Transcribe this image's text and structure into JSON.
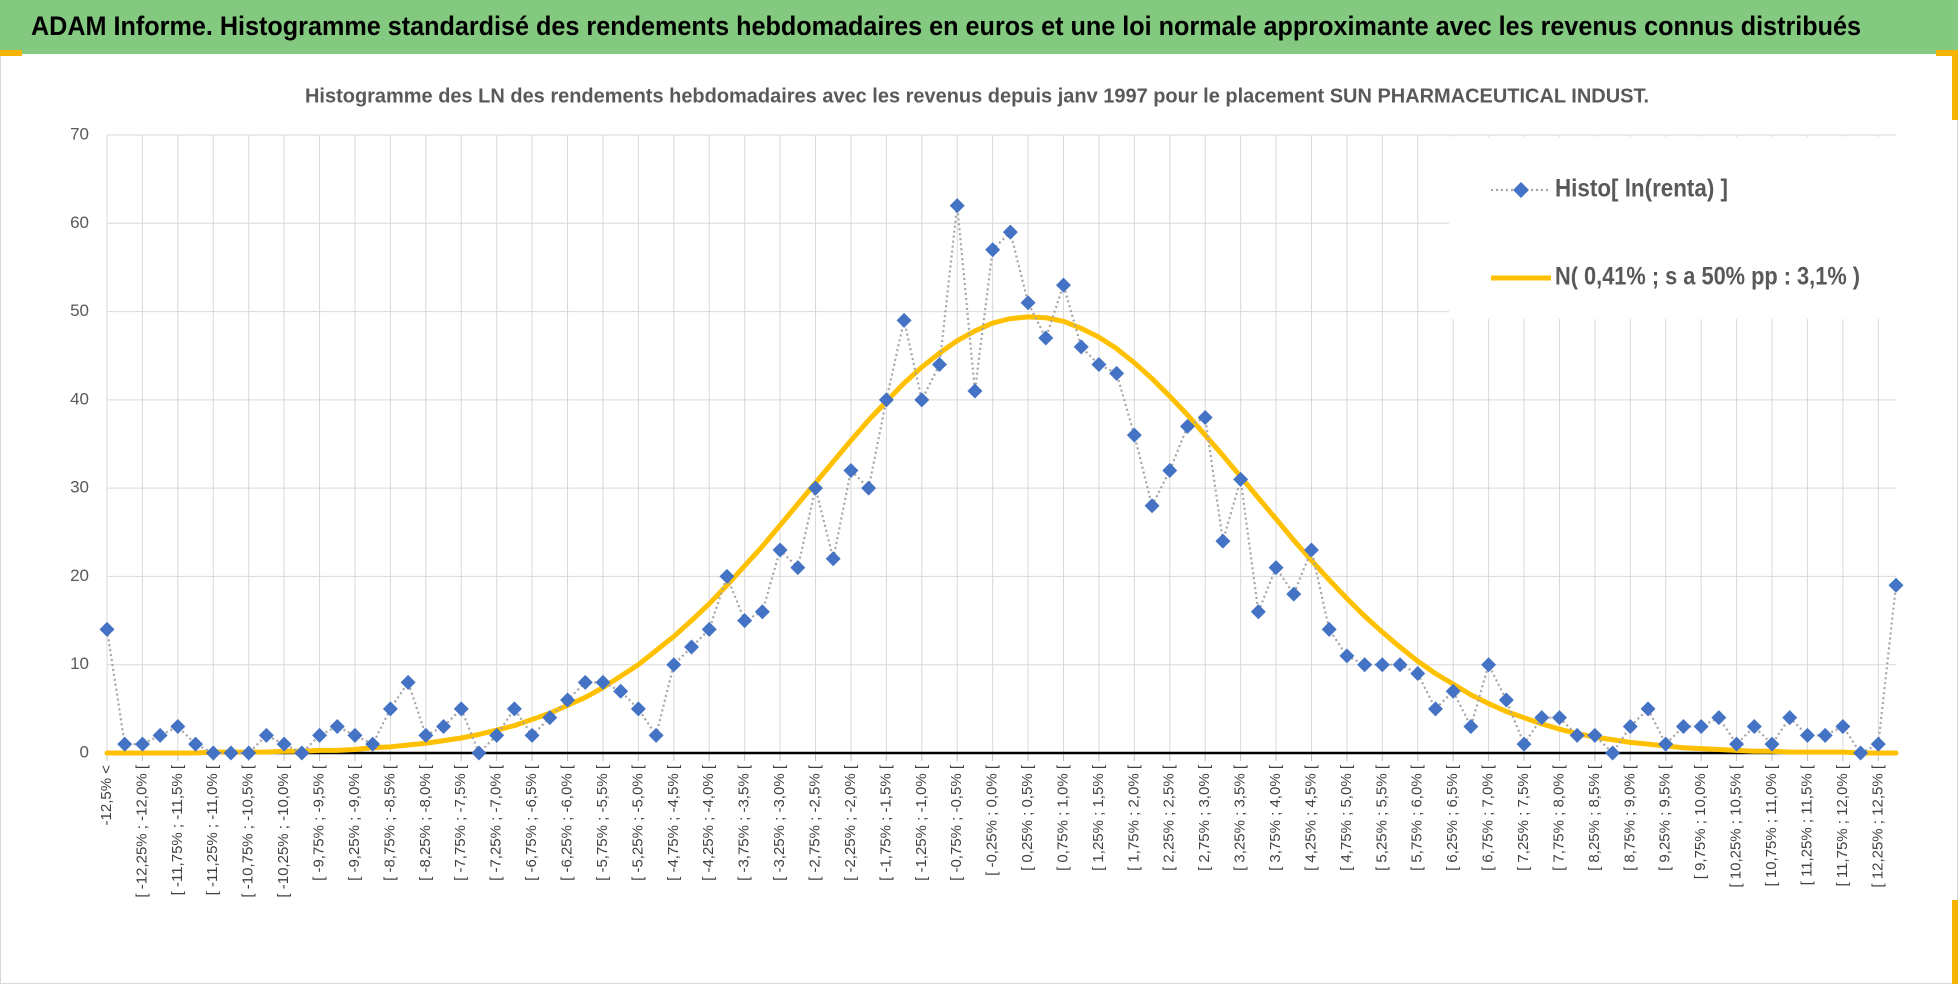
{
  "chart_data": {
    "type": "line",
    "title": "ADAM Informe. Histogramme standardisé des rendements hebdomadaires en euros et une loi normale approximante avec les revenus connus distribués",
    "subtitle": "Histogramme  des LN des rendements hebdomadaires avec les revenus depuis janv 1997 pour le placement SUN PHARMACEUTICAL INDUST.",
    "categories": [
      "-12,5% <",
      null,
      "[ -12,25% ; -12,0% [",
      null,
      "[ -11,75% ; -11,5% [",
      null,
      "[ -11,25% ; -11,0% [",
      null,
      "[ -10,75% ; -10,5% [",
      null,
      "[ -10,25% ; -10,0% [",
      null,
      "[ -9,75% ; -9,5% [",
      null,
      "[ -9,25% ; -9,0% [",
      null,
      "[ -8,75% ; -8,5% [",
      null,
      "[ -8,25% ; -8,0% [",
      null,
      "[ -7,75% ; -7,5% [",
      null,
      "[ -7,25% ; -7,0% [",
      null,
      "[ -6,75% ; -6,5% [",
      null,
      "[ -6,25% ; -6,0% [",
      null,
      "[ -5,75% ; -5,5% [",
      null,
      "[ -5,25% ; -5,0% [",
      null,
      "[ -4,75% ; -4,5% [",
      null,
      "[ -4,25% ; -4,0% [",
      null,
      "[ -3,75% ; -3,5% [",
      null,
      "[ -3,25% ; -3,0% [",
      null,
      "[ -2,75% ; -2,5% [",
      null,
      "[ -2,25% ; -2,0% [",
      null,
      "[ -1,75% ; -1,5% [",
      null,
      "[ -1,25% ; -1,0% [",
      null,
      "[ -0,75% ; -0,5% [",
      null,
      "[ -0,25% ; 0,0% [",
      null,
      "[ 0,25% ; 0,5% [",
      null,
      "[ 0,75% ; 1,0% [",
      null,
      "[ 1,25% ; 1,5% [",
      null,
      "[ 1,75% ; 2,0% [",
      null,
      "[ 2,25% ; 2,5% [",
      null,
      "[ 2,75% ; 3,0% [",
      null,
      "[ 3,25% ; 3,5% [",
      null,
      "[ 3,75% ; 4,0% [",
      null,
      "[ 4,25% ; 4,5% [",
      null,
      "[ 4,75% ; 5,0% [",
      null,
      "[ 5,25% ; 5,5% [",
      null,
      "[ 5,75% ; 6,0% [",
      null,
      "[ 6,25% ; 6,5% [",
      null,
      "[ 6,75% ; 7,0% [",
      null,
      "[ 7,25% ; 7,5% [",
      null,
      "[ 7,75% ; 8,0% [",
      null,
      "[ 8,25% ; 8,5% [",
      null,
      "[ 8,75% ; 9,0% [",
      null,
      "[ 9,25% ; 9,5% [",
      null,
      "[ 9,75% ; 10,0% [",
      null,
      "[ 10,25% ; 10,5% [",
      null,
      "[ 10,75% ; 11,0% [",
      null,
      "[ 11,25% ; 11,5% [",
      null,
      "[ 11,75% ; 12,0% [",
      null,
      "[ 12,25% ; 12,5% [",
      null
    ],
    "series": [
      {
        "name": "Histo[ ln(renta) ]",
        "style": "markers-dotted",
        "color": "#4472c4",
        "line_color": "#a5a5a5",
        "values": [
          14,
          1,
          1,
          2,
          3,
          1,
          0,
          0,
          0,
          2,
          1,
          0,
          2,
          3,
          2,
          1,
          5,
          8,
          2,
          3,
          5,
          0,
          2,
          5,
          2,
          4,
          6,
          8,
          8,
          7,
          5,
          2,
          10,
          12,
          14,
          20,
          15,
          16,
          23,
          21,
          30,
          22,
          32,
          30,
          40,
          49,
          40,
          44,
          62,
          41,
          57,
          59,
          51,
          47,
          53,
          46,
          44,
          43,
          36,
          28,
          32,
          37,
          38,
          24,
          31,
          16,
          21,
          18,
          23,
          14,
          11,
          10,
          10,
          10,
          9,
          5,
          7,
          3,
          10,
          6,
          1,
          4,
          4,
          2,
          2,
          0,
          3,
          5,
          1,
          3,
          3,
          4,
          1,
          3,
          1,
          4,
          2,
          2,
          3,
          0,
          1,
          19
        ]
      },
      {
        "name": "N( 0,41% ; s a 50% pp : 3,1% )",
        "style": "line",
        "color": "#ffc000",
        "values": [
          0.0,
          0.0,
          0.0,
          0.0,
          0.0,
          0.0,
          0.1,
          0.1,
          0.1,
          0.1,
          0.2,
          0.2,
          0.3,
          0.3,
          0.4,
          0.6,
          0.7,
          0.9,
          1.1,
          1.4,
          1.7,
          2.1,
          2.6,
          3.1,
          3.8,
          4.5,
          5.4,
          6.3,
          7.4,
          8.7,
          10.0,
          11.6,
          13.2,
          15.0,
          16.9,
          19.0,
          21.2,
          23.4,
          25.8,
          28.2,
          30.6,
          33.0,
          35.4,
          37.7,
          39.8,
          41.9,
          43.7,
          45.3,
          46.7,
          47.8,
          48.7,
          49.2,
          49.4,
          49.3,
          48.9,
          48.1,
          47.1,
          45.8,
          44.2,
          42.4,
          40.4,
          38.3,
          36.0,
          33.7,
          31.3,
          28.9,
          26.5,
          24.1,
          21.8,
          19.6,
          17.5,
          15.5,
          13.7,
          12.0,
          10.4,
          9.0,
          7.8,
          6.6,
          5.6,
          4.7,
          4.0,
          3.3,
          2.7,
          2.2,
          1.8,
          1.5,
          1.2,
          1.0,
          0.8,
          0.6,
          0.5,
          0.4,
          0.3,
          0.2,
          0.2,
          0.1,
          0.1,
          0.1,
          0.1,
          0.0,
          0.0,
          0.0
        ]
      }
    ],
    "ylim": [
      0,
      70
    ],
    "yticks": [
      0,
      10,
      20,
      30,
      40,
      50,
      60,
      70
    ],
    "grid": true,
    "legend": "top-right"
  }
}
